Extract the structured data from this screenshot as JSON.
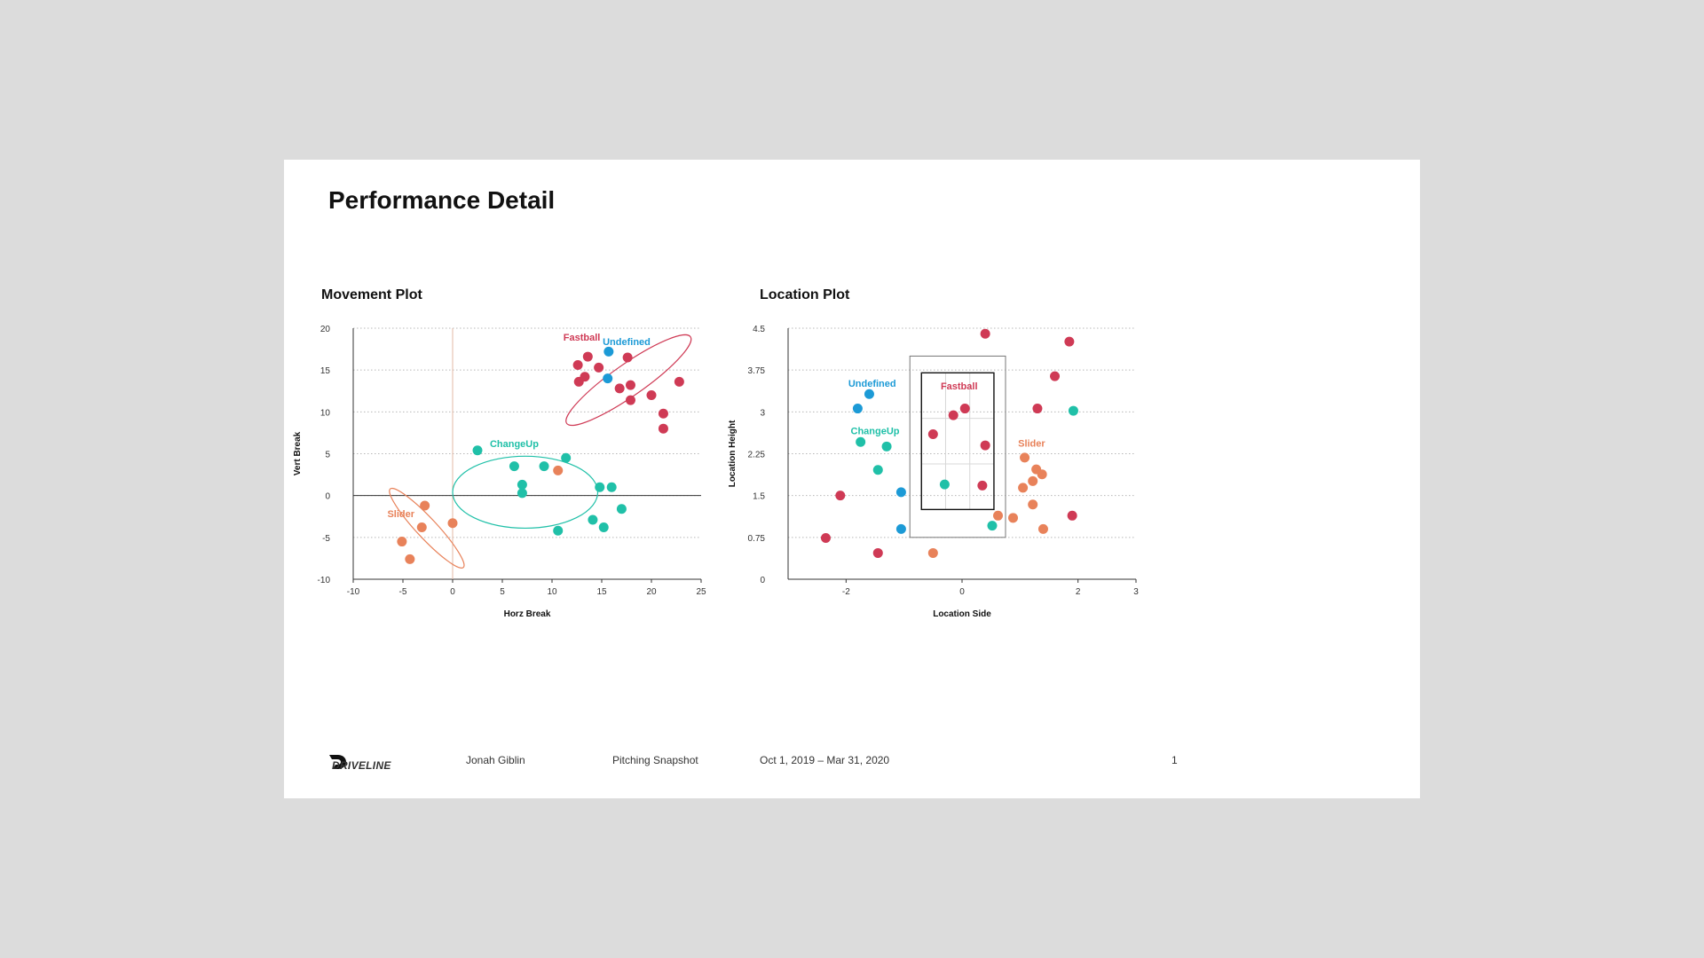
{
  "page": {
    "title": "Performance Detail"
  },
  "colors": {
    "fastball": "#cf3a55",
    "undefined": "#1c9ad6",
    "changeup": "#20c0a8",
    "slider": "#e8825a",
    "background": "#dcdcdc"
  },
  "footer": {
    "brand": "DRIVELINE",
    "player": "Jonah Giblin",
    "report": "Pitching Snapshot",
    "date_range": "Oct 1, 2019 – Mar 31, 2020",
    "page_number": "1"
  },
  "chart_data": [
    {
      "type": "scatter",
      "title": "Movement Plot",
      "xlabel": "Horz Break",
      "ylabel": "Vert Break",
      "xlim": [
        -10,
        25
      ],
      "ylim": [
        -10,
        20
      ],
      "xticks": [
        "-10",
        "-5",
        "0",
        "5",
        "10",
        "15",
        "20",
        "25"
      ],
      "yticks": [
        "-10",
        "-5",
        "0",
        "5",
        "10",
        "15",
        "20"
      ],
      "grid": "horizontal dotted",
      "series": [
        {
          "name": "Fastball",
          "color": "#cf3a55",
          "label_at": [
            13,
            18.5
          ],
          "points": [
            [
              12.6,
              15.6
            ],
            [
              13.6,
              16.6
            ],
            [
              14.7,
              15.3
            ],
            [
              17.6,
              16.5
            ],
            [
              12.7,
              13.6
            ],
            [
              13.3,
              14.2
            ],
            [
              16.8,
              12.8
            ],
            [
              17.9,
              13.2
            ],
            [
              17.9,
              11.4
            ],
            [
              20.0,
              12.0
            ],
            [
              22.8,
              13.6
            ],
            [
              21.2,
              9.8
            ],
            [
              21.2,
              8.0
            ]
          ],
          "ellipse": {
            "cx": 17.7,
            "cy": 13.8,
            "rx": 7.6,
            "ry": 1.9,
            "angle": 35
          }
        },
        {
          "name": "Undefined",
          "color": "#1c9ad6",
          "label_at": [
            17.5,
            18.0
          ],
          "points": [
            [
              15.7,
              17.2
            ],
            [
              15.6,
              14.0
            ]
          ]
        },
        {
          "name": "ChangeUp",
          "color": "#20c0a8",
          "label_at": [
            6.2,
            5.8
          ],
          "points": [
            [
              2.5,
              5.4
            ],
            [
              6.2,
              3.5
            ],
            [
              9.2,
              3.5
            ],
            [
              11.4,
              4.5
            ],
            [
              7.0,
              1.3
            ],
            [
              7.0,
              0.3
            ],
            [
              14.8,
              1.0
            ],
            [
              16.0,
              1.0
            ],
            [
              17.0,
              -1.6
            ],
            [
              14.1,
              -2.9
            ],
            [
              15.2,
              -3.8
            ],
            [
              10.6,
              -4.2
            ]
          ],
          "ellipse": {
            "cx": 7.3,
            "cy": 0.4,
            "rx": 7.3,
            "ry": 4.3,
            "angle": 0
          }
        },
        {
          "name": "Slider",
          "color": "#e8825a",
          "label_at": [
            -5.2,
            -2.6
          ],
          "points": [
            [
              10.6,
              3.0
            ],
            [
              -2.8,
              -1.2
            ],
            [
              0.0,
              -3.3
            ],
            [
              -3.1,
              -3.8
            ],
            [
              -5.1,
              -5.5
            ],
            [
              -4.3,
              -7.6
            ]
          ],
          "ellipse": {
            "cx": -2.6,
            "cy": -3.9,
            "rx": 5.4,
            "ry": 1.2,
            "angle": -47
          }
        }
      ]
    },
    {
      "type": "scatter",
      "title": "Location Plot",
      "xlabel": "Location Side",
      "ylabel": "Location Height",
      "xlim": [
        -3,
        3
      ],
      "ylim": [
        0,
        4.5
      ],
      "xticks": [
        "-2",
        "0",
        "2",
        "3"
      ],
      "xtick_values": [
        -2,
        0,
        2,
        3
      ],
      "yticks": [
        "0",
        "0.75",
        "1.5",
        "2.25",
        "3",
        "3.75",
        "4.5"
      ],
      "grid": "horizontal dotted",
      "strike_zone": {
        "outer": [
          -0.9,
          0.75,
          0.75,
          4.0
        ],
        "inner": [
          -0.7,
          1.25,
          0.55,
          3.7
        ]
      },
      "series": [
        {
          "name": "Fastball",
          "color": "#cf3a55",
          "label_at": [
            -0.05,
            3.4
          ],
          "points": [
            [
              0.4,
              4.4
            ],
            [
              1.85,
              4.26
            ],
            [
              1.6,
              3.64
            ],
            [
              1.3,
              3.06
            ],
            [
              -0.15,
              2.94
            ],
            [
              0.05,
              3.06
            ],
            [
              -0.5,
              2.6
            ],
            [
              0.4,
              2.4
            ],
            [
              0.35,
              1.68
            ],
            [
              -2.1,
              1.5
            ],
            [
              -2.35,
              0.74
            ],
            [
              -1.45,
              0.47
            ],
            [
              1.9,
              1.14
            ]
          ]
        },
        {
          "name": "Undefined",
          "color": "#1c9ad6",
          "label_at": [
            -1.55,
            3.45
          ],
          "points": [
            [
              -1.6,
              3.32
            ],
            [
              -1.8,
              3.06
            ],
            [
              -1.05,
              1.56
            ],
            [
              -1.05,
              0.9
            ]
          ]
        },
        {
          "name": "ChangeUp",
          "color": "#20c0a8",
          "label_at": [
            -1.5,
            2.6
          ],
          "points": [
            [
              -1.75,
              2.46
            ],
            [
              -1.3,
              2.38
            ],
            [
              -1.45,
              1.96
            ],
            [
              -0.3,
              1.7
            ],
            [
              0.52,
              0.96
            ],
            [
              1.92,
              3.02
            ]
          ]
        },
        {
          "name": "Slider",
          "color": "#e8825a",
          "label_at": [
            1.2,
            2.38
          ],
          "points": [
            [
              1.08,
              2.18
            ],
            [
              1.28,
              1.97
            ],
            [
              1.38,
              1.88
            ],
            [
              1.22,
              1.76
            ],
            [
              1.05,
              1.64
            ],
            [
              1.22,
              1.34
            ],
            [
              0.62,
              1.14
            ],
            [
              0.88,
              1.1
            ],
            [
              1.4,
              0.9
            ],
            [
              -0.5,
              0.47
            ]
          ]
        }
      ]
    }
  ]
}
